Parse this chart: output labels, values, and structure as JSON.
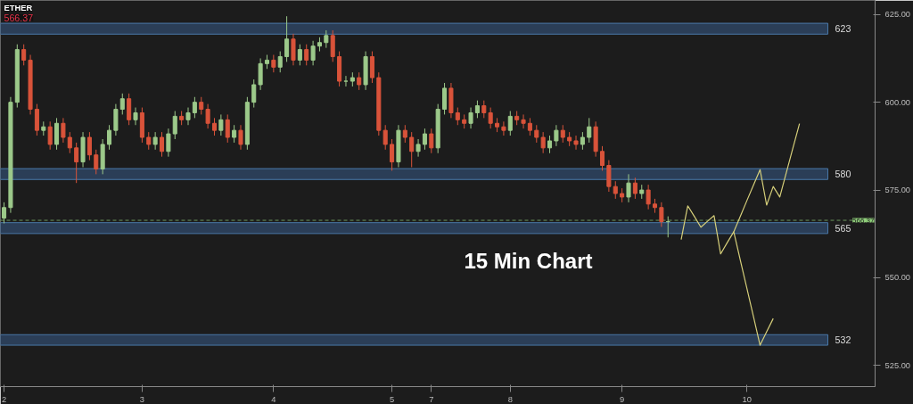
{
  "chart_data": {
    "type": "candlestick",
    "title": "ETHER",
    "subtitle": "566.37",
    "annotations": [
      "15 Min Chart"
    ],
    "categories": [
      "2",
      null,
      null,
      null,
      null,
      null,
      null,
      null,
      null,
      null,
      null,
      null,
      null,
      null,
      null,
      null,
      null,
      null,
      null,
      null,
      null,
      "3",
      null,
      null,
      null,
      null,
      null,
      null,
      null,
      null,
      null,
      null,
      null,
      null,
      null,
      null,
      null,
      null,
      null,
      null,
      null,
      "4",
      null,
      null,
      null,
      null,
      null,
      null,
      null,
      null,
      null,
      null,
      null,
      null,
      null,
      null,
      null,
      null,
      null,
      "5",
      null,
      null,
      null,
      null,
      null,
      "7",
      null,
      null,
      null,
      null,
      null,
      null,
      null,
      null,
      null,
      null,
      null,
      "8",
      null,
      null,
      null,
      null,
      null,
      null,
      null,
      null,
      null,
      null,
      null,
      null,
      null,
      null,
      null,
      null,
      "9",
      null,
      null,
      null,
      null,
      null,
      null,
      null,
      null,
      null,
      null,
      null,
      null,
      null,
      null,
      null,
      null,
      null,
      null,
      "10",
      null,
      null,
      null,
      null,
      null,
      null,
      null,
      null,
      null,
      null,
      null,
      null,
      null,
      null,
      null,
      null,
      null,
      null,
      null
    ],
    "ohlc": [
      [
        567,
        571.5,
        565.5,
        570
      ],
      [
        570,
        601.5,
        568.5,
        600
      ],
      [
        600,
        616.5,
        598.5,
        615
      ],
      [
        615,
        616.5,
        610.5,
        612
      ],
      [
        612,
        613.5,
        596.5,
        598
      ],
      [
        598,
        599.5,
        590.5,
        592
      ],
      [
        592,
        594.5,
        590.5,
        593
      ],
      [
        593,
        594.5,
        586.5,
        588
      ],
      [
        588,
        595.5,
        586.5,
        594
      ],
      [
        594,
        595.5,
        588.5,
        590
      ],
      [
        590,
        591.5,
        585.5,
        587
      ],
      [
        587,
        588.5,
        577,
        583
      ],
      [
        583,
        591.5,
        581.5,
        590
      ],
      [
        590,
        591.5,
        583.5,
        585
      ],
      [
        585,
        586.5,
        579.5,
        581
      ],
      [
        581,
        589.5,
        579.5,
        588
      ],
      [
        588,
        593.5,
        586.5,
        592
      ],
      [
        592,
        599.5,
        590.5,
        598
      ],
      [
        598,
        602.5,
        596.5,
        601
      ],
      [
        601,
        602.5,
        593.5,
        595
      ],
      [
        595,
        598.5,
        593.5,
        597
      ],
      [
        597,
        598.5,
        588.5,
        590
      ],
      [
        590,
        591.5,
        586.5,
        588
      ],
      [
        588,
        591.5,
        586.5,
        590
      ],
      [
        590,
        591.5,
        584.5,
        586
      ],
      [
        586,
        592.5,
        584.5,
        591
      ],
      [
        591,
        597.5,
        589.5,
        596
      ],
      [
        596,
        597.5,
        593.5,
        595
      ],
      [
        595,
        598.5,
        593.5,
        597
      ],
      [
        597,
        601.5,
        595.5,
        600
      ],
      [
        600,
        601.5,
        596.5,
        598
      ],
      [
        598,
        599.5,
        592.5,
        594
      ],
      [
        594,
        595.5,
        590.5,
        592
      ],
      [
        592,
        596.5,
        590.5,
        595
      ],
      [
        595,
        596.5,
        588.5,
        590
      ],
      [
        590,
        593.5,
        588.5,
        592
      ],
      [
        592,
        593.5,
        586.5,
        588
      ],
      [
        588,
        601.5,
        586.5,
        600
      ],
      [
        600,
        606.5,
        598.5,
        605
      ],
      [
        605,
        612.5,
        603.5,
        611
      ],
      [
        611,
        613.5,
        609.5,
        612
      ],
      [
        612,
        613.5,
        608.5,
        610
      ],
      [
        610,
        614.5,
        608.5,
        613
      ],
      [
        613,
        624.5,
        611.5,
        618
      ],
      [
        618,
        619.5,
        610.5,
        612
      ],
      [
        612,
        616.5,
        610.5,
        615
      ],
      [
        615,
        616.5,
        610.5,
        612
      ],
      [
        612,
        617.5,
        610.5,
        616
      ],
      [
        616,
        618.5,
        614.5,
        617
      ],
      [
        617,
        620.5,
        615.5,
        619
      ],
      [
        619,
        620.5,
        611.5,
        613
      ],
      [
        613,
        614.5,
        604.5,
        606
      ],
      [
        606,
        607.5,
        604.5,
        606
      ],
      [
        606,
        608.5,
        604.5,
        607
      ],
      [
        607,
        608.5,
        603.5,
        605
      ],
      [
        605,
        614.5,
        603.5,
        613
      ],
      [
        613,
        614.5,
        605.5,
        607
      ],
      [
        607,
        608.5,
        590.5,
        592
      ],
      [
        592,
        593.5,
        586.5,
        588
      ],
      [
        588,
        589.5,
        580.5,
        583
      ],
      [
        583,
        593.5,
        581.5,
        592
      ],
      [
        592,
        593.5,
        588.5,
        590
      ],
      [
        590,
        591.5,
        581.5,
        586
      ],
      [
        586,
        589.5,
        584.5,
        588
      ],
      [
        588,
        592.5,
        586.5,
        591
      ],
      [
        591,
        592.5,
        585.5,
        587
      ],
      [
        587,
        599.5,
        585.5,
        598
      ],
      [
        598,
        605.5,
        596.5,
        604
      ],
      [
        604,
        605.5,
        595.5,
        597
      ],
      [
        597,
        598.5,
        593.5,
        595
      ],
      [
        595,
        596.5,
        592.5,
        594
      ],
      [
        594,
        598.5,
        592.5,
        597
      ],
      [
        597,
        600.5,
        595.5,
        599
      ],
      [
        599,
        600.5,
        595.5,
        597
      ],
      [
        597,
        598.5,
        592.5,
        594
      ],
      [
        594,
        595.5,
        591.5,
        593
      ],
      [
        593,
        594.5,
        590.5,
        592
      ],
      [
        592,
        597.5,
        590.5,
        596
      ],
      [
        596,
        597.5,
        593.5,
        595
      ],
      [
        595,
        596.5,
        592.5,
        594
      ],
      [
        594,
        595.5,
        590.5,
        592
      ],
      [
        592,
        593.5,
        588.5,
        590
      ],
      [
        590,
        591.5,
        585.5,
        587
      ],
      [
        587,
        590.5,
        585.5,
        589
      ],
      [
        589,
        593.5,
        587.5,
        592
      ],
      [
        592,
        593.5,
        588.5,
        590
      ],
      [
        590,
        591.5,
        587.5,
        589
      ],
      [
        589,
        590.5,
        586.5,
        588
      ],
      [
        588,
        591.5,
        586.5,
        590
      ],
      [
        590,
        595.5,
        588.5,
        593
      ],
      [
        593,
        594.5,
        584.5,
        586
      ],
      [
        586,
        587.5,
        580.5,
        582
      ],
      [
        582,
        583.5,
        574.5,
        576
      ],
      [
        576,
        577.5,
        572.5,
        574
      ],
      [
        574,
        575.5,
        571.5,
        573
      ],
      [
        573,
        579.5,
        571.5,
        577
      ],
      [
        577,
        578.5,
        572.5,
        574
      ],
      [
        574,
        576.5,
        572.5,
        575
      ],
      [
        575,
        576.5,
        569.5,
        571
      ],
      [
        571,
        572.5,
        568.5,
        570
      ],
      [
        570,
        571.5,
        564.5,
        566
      ],
      [
        566,
        567.5,
        561.5,
        566
      ],
      null,
      null,
      null,
      null,
      null,
      null,
      null,
      null,
      null,
      null,
      null,
      null,
      null,
      null,
      null,
      null,
      null,
      null,
      null,
      null,
      null,
      null,
      null,
      null,
      null,
      null,
      null,
      null,
      null,
      null,
      null
    ],
    "series": [
      {
        "type": "line",
        "color": "#d6cf7a",
        "values": [
          null,
          null,
          null,
          null,
          null,
          null,
          null,
          null,
          null,
          null,
          null,
          null,
          null,
          null,
          null,
          null,
          null,
          null,
          null,
          null,
          null,
          null,
          null,
          null,
          null,
          null,
          null,
          null,
          null,
          null,
          null,
          null,
          null,
          null,
          null,
          null,
          null,
          null,
          null,
          null,
          null,
          null,
          null,
          null,
          null,
          null,
          null,
          null,
          null,
          null,
          null,
          null,
          null,
          null,
          null,
          null,
          null,
          null,
          null,
          null,
          null,
          null,
          null,
          null,
          null,
          null,
          null,
          null,
          null,
          null,
          null,
          null,
          null,
          null,
          null,
          null,
          null,
          null,
          null,
          null,
          null,
          null,
          null,
          null,
          null,
          null,
          null,
          null,
          null,
          null,
          null,
          null,
          null,
          null,
          null,
          null,
          null,
          null,
          null,
          null,
          null,
          null,
          null,
          560.9,
          570.5,
          567.5,
          564.4,
          566.1,
          567.7,
          556.8,
          560.0,
          563.1,
          555.0,
          547.0,
          538.9,
          530.8,
          534.6,
          538.4,
          null,
          null,
          null,
          null,
          null,
          null,
          null,
          null,
          null,
          null,
          null,
          null,
          null,
          null,
          null
        ]
      },
      {
        "type": "line",
        "color": "#d6cf7a",
        "values": [
          null,
          null,
          null,
          null,
          null,
          null,
          null,
          null,
          null,
          null,
          null,
          null,
          null,
          null,
          null,
          null,
          null,
          null,
          null,
          null,
          null,
          null,
          null,
          null,
          null,
          null,
          null,
          null,
          null,
          null,
          null,
          null,
          null,
          null,
          null,
          null,
          null,
          null,
          null,
          null,
          null,
          null,
          null,
          null,
          null,
          null,
          null,
          null,
          null,
          null,
          null,
          null,
          null,
          null,
          null,
          null,
          null,
          null,
          null,
          null,
          null,
          null,
          null,
          null,
          null,
          null,
          null,
          null,
          null,
          null,
          null,
          null,
          null,
          null,
          null,
          null,
          null,
          null,
          null,
          null,
          null,
          null,
          null,
          null,
          null,
          null,
          null,
          null,
          null,
          null,
          null,
          null,
          null,
          null,
          null,
          null,
          null,
          null,
          null,
          null,
          null,
          null,
          null,
          null,
          null,
          null,
          null,
          null,
          null,
          null,
          null,
          563.1,
          567.5,
          572.0,
          576.4,
          580.8,
          570.7,
          576.0,
          573.0,
          580.0,
          587.0,
          593.9,
          null,
          null,
          null,
          null,
          null,
          null,
          null,
          null,
          null,
          null,
          null
        ]
      }
    ],
    "bands": [
      {
        "axis": "y",
        "from": 619.4,
        "to": 622.5,
        "label": "623",
        "color": "#2b3e57"
      },
      {
        "axis": "y",
        "from": 578.0,
        "to": 581.1,
        "label": "580",
        "color": "#2b3e57"
      },
      {
        "axis": "y",
        "from": 562.6,
        "to": 565.7,
        "label": "565",
        "color": "#2b3e57"
      },
      {
        "axis": "y",
        "from": 530.8,
        "to": 533.8,
        "label": "532",
        "color": "#2b3e57"
      }
    ],
    "ref_lines": [
      {
        "axis": "y",
        "value": 566.37,
        "label": "566.37",
        "color": "#8fce7a",
        "line_style": "dashed"
      }
    ],
    "ylim": [
      519,
      629
    ],
    "yticks": [
      {
        "value": 525,
        "label": "525.00"
      },
      {
        "value": 550,
        "label": "550.00"
      },
      {
        "value": 575,
        "label": "575.00"
      },
      {
        "value": 600,
        "label": "600.00"
      },
      {
        "value": 625,
        "label": "625.00"
      }
    ],
    "grid": false
  }
}
